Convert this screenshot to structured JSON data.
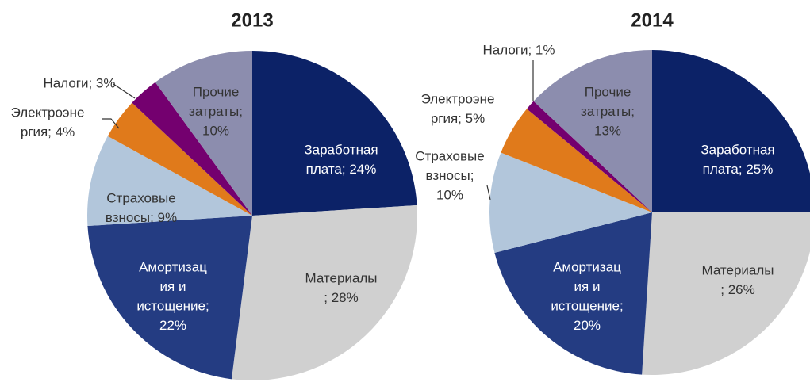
{
  "chart_data": [
    {
      "type": "pie",
      "title": "2013",
      "values": [
        24,
        28,
        22,
        9,
        4,
        3,
        10
      ],
      "value_labels": [
        [
          "Заработная",
          "плата; 24%"
        ],
        [
          "Материалы",
          "; 28%"
        ],
        [
          "Амортизац",
          "ия и",
          "истощение;",
          "22%"
        ],
        [
          "Страховые",
          "взносы; 9%"
        ],
        [
          "Электроэне",
          "ргия; 4%"
        ],
        [
          "Налоги; 3%"
        ],
        [
          "Прочие",
          "затраты;",
          "10%"
        ]
      ],
      "colors": [
        "#0c2267",
        "#d0d0d0",
        "#243c82",
        "#b2c6db",
        "#e07a1b",
        "#74006f",
        "#8c8dae"
      ]
    },
    {
      "type": "pie",
      "title": "2014",
      "values": [
        25,
        26,
        20,
        10,
        5,
        1,
        13
      ],
      "value_labels": [
        [
          "Заработная",
          "плата; 25%"
        ],
        [
          "Материалы",
          "; 26%"
        ],
        [
          "Амортизац",
          "ия и",
          "истощение;",
          "20%"
        ],
        [
          "Страховые",
          "взносы;",
          "10%"
        ],
        [
          "Электроэне",
          "ргия; 5%"
        ],
        [
          "Налоги; 1%"
        ],
        [
          "Прочие",
          "затраты;",
          "13%"
        ]
      ],
      "colors": [
        "#0c2267",
        "#d0d0d0",
        "#243c82",
        "#b2c6db",
        "#e07a1b",
        "#74006f",
        "#8c8dae"
      ]
    }
  ]
}
